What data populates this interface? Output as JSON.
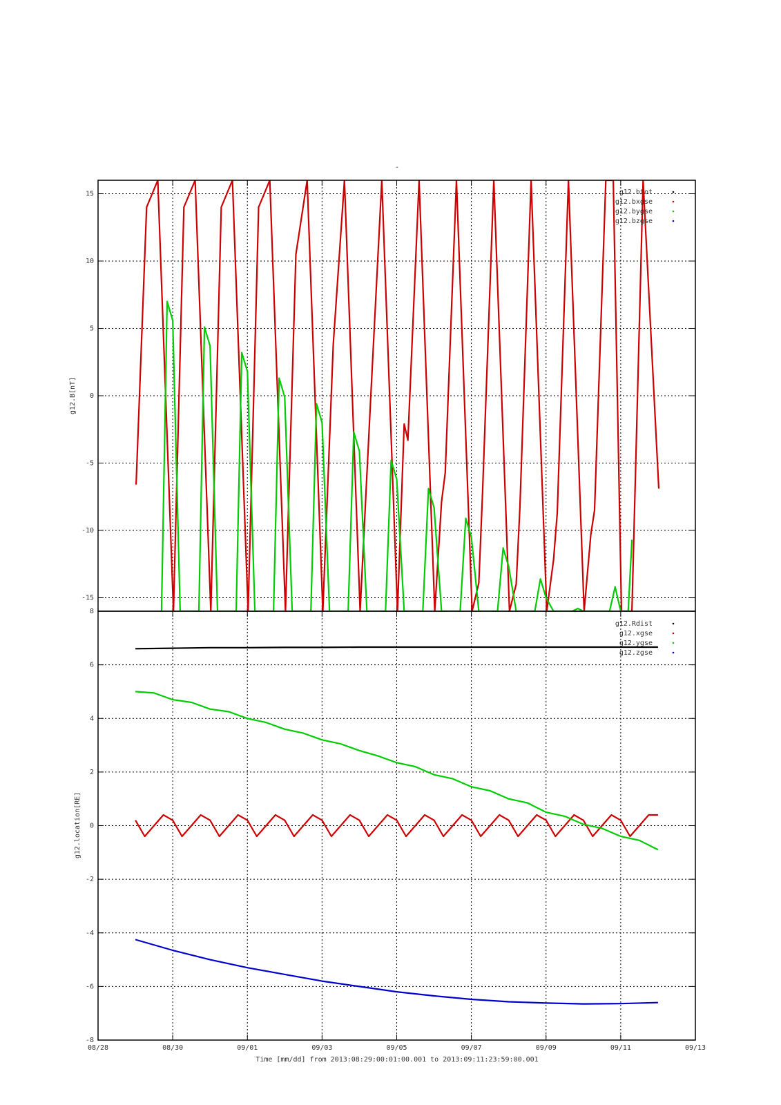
{
  "figure": {
    "title": "-",
    "footer": "Time [mm/dd]  from 2013:08:29:00:01:00.001  to  2013:09:11:23:59:00.001"
  },
  "x_axis": {
    "range_days": [
      0,
      16
    ],
    "ticks": [
      {
        "day": 0,
        "label": "08/28"
      },
      {
        "day": 2,
        "label": "08/30"
      },
      {
        "day": 4,
        "label": "09/01"
      },
      {
        "day": 6,
        "label": "09/03"
      },
      {
        "day": 8,
        "label": "09/05"
      },
      {
        "day": 10,
        "label": "09/07"
      },
      {
        "day": 12,
        "label": "09/09"
      },
      {
        "day": 14,
        "label": "09/11"
      },
      {
        "day": 16,
        "label": "09/13"
      }
    ]
  },
  "chart_data": [
    {
      "type": "line",
      "ylabel": "g12.B[nT]",
      "ylim": [
        -16,
        16
      ],
      "yticks": [
        -15,
        -10,
        -5,
        0,
        5,
        10,
        15
      ],
      "legend_position": "top-right",
      "grid": true,
      "series": [
        {
          "name": "g12.btot",
          "color": "#000000",
          "x": [],
          "y": []
        },
        {
          "name": "g12.bxgse",
          "color": "#cc0000",
          "x": [
            1.02,
            1.3,
            1.6,
            2.02,
            2.3,
            2.6,
            3.02,
            3.3,
            3.6,
            4.02,
            4.3,
            4.6,
            5.02,
            5.3,
            5.6,
            6.02,
            6.3,
            6.6,
            7.02,
            7.3,
            7.6,
            8.02,
            8.2,
            8.3,
            8.6,
            9.02,
            9.2,
            9.3,
            9.6,
            10.02,
            10.2,
            10.3,
            10.6,
            11.02,
            11.2,
            11.3,
            11.6,
            12.02,
            12.2,
            12.3,
            12.6,
            13.02,
            13.2,
            13.3,
            13.6,
            13.8,
            14.02,
            14.2,
            14.3,
            14.6,
            15.02
          ],
          "y": [
            -6.6,
            14,
            16,
            -16,
            14,
            16,
            -16,
            14,
            16,
            -16,
            14,
            16,
            -16,
            10.5,
            16,
            -16,
            3.8,
            16,
            -16,
            -0.3,
            16,
            -16,
            -2.1,
            -3.3,
            16,
            -16,
            -7.9,
            -5.7,
            16,
            -16,
            -13.9,
            -7.2,
            16,
            -16,
            -14,
            -8.3,
            16,
            -16,
            -12.2,
            -8.7,
            16,
            -16,
            -10.3,
            -8.5,
            16,
            16,
            -16,
            -16,
            -16,
            16,
            -6.9
          ]
        },
        {
          "name": "g12.bygse",
          "color": "#00cc00",
          "x": [
            1.7,
            1.85,
            2.0,
            2.2,
            2.7,
            2.85,
            3.0,
            3.2,
            3.7,
            3.85,
            4.0,
            4.2,
            4.7,
            4.85,
            5.0,
            5.2,
            5.7,
            5.85,
            6.0,
            6.2,
            6.7,
            6.85,
            7.0,
            7.2,
            7.7,
            7.85,
            8.0,
            8.2,
            8.7,
            8.85,
            9.0,
            9.2,
            9.7,
            9.85,
            10.0,
            10.2,
            10.7,
            10.85,
            11.0,
            11.2,
            11.7,
            11.85,
            12.0,
            12.2,
            12.7,
            12.85,
            13.0,
            13.2,
            13.7,
            13.85,
            14.0,
            14.2,
            14.3
          ],
          "y": [
            -16,
            7.0,
            5.6,
            -16,
            -16,
            5.1,
            3.7,
            -16,
            -16,
            3.2,
            1.8,
            -16,
            -16,
            1.3,
            -0.1,
            -16,
            -16,
            -0.6,
            -2.0,
            -16,
            -16,
            -2.7,
            -4.1,
            -16,
            -16,
            -4.8,
            -6.2,
            -16,
            -16,
            -6.9,
            -8.3,
            -16,
            -16,
            -9.1,
            -10.5,
            -16,
            -16,
            -11.3,
            -12.7,
            -16,
            -16,
            -13.6,
            -15.0,
            -16,
            -16,
            -15.8,
            -16,
            -16,
            -16,
            -14.2,
            -16,
            -16,
            -10.7
          ]
        },
        {
          "name": "g12.bzgse",
          "color": "#0000cc",
          "x": [],
          "y": []
        }
      ]
    },
    {
      "type": "line",
      "ylabel": "g12.location[RE]",
      "ylim": [
        -8,
        8
      ],
      "yticks": [
        -8,
        -6,
        -4,
        -2,
        0,
        2,
        4,
        6,
        8
      ],
      "legend_position": "top-right",
      "grid": true,
      "series": [
        {
          "name": "g12.Rdist",
          "color": "#000000",
          "x": [
            1.0,
            2.0,
            3.0,
            4.0,
            5.0,
            6.0,
            7.0,
            8.0,
            9.0,
            10.0,
            11.0,
            12.0,
            13.0,
            14.0,
            15.0
          ],
          "y": [
            6.6,
            6.62,
            6.64,
            6.64,
            6.65,
            6.65,
            6.66,
            6.66,
            6.66,
            6.66,
            6.66,
            6.66,
            6.66,
            6.66,
            6.66
          ]
        },
        {
          "name": "g12.xgse",
          "color": "#cc0000",
          "x": [
            1.0,
            1.25,
            1.5,
            1.75,
            2.0,
            2.25,
            2.5,
            2.75,
            3.0,
            3.25,
            3.5,
            3.75,
            4.0,
            4.25,
            4.5,
            4.75,
            5.0,
            5.25,
            5.5,
            5.75,
            6.0,
            6.25,
            6.5,
            6.75,
            7.0,
            7.25,
            7.5,
            7.75,
            8.0,
            8.25,
            8.5,
            8.75,
            9.0,
            9.25,
            9.5,
            9.75,
            10.0,
            10.25,
            10.5,
            10.75,
            11.0,
            11.25,
            11.5,
            11.75,
            12.0,
            12.25,
            12.5,
            12.75,
            13.0,
            13.25,
            13.5,
            13.75,
            14.0,
            14.25,
            14.5,
            14.75,
            15.0
          ],
          "y": [
            0.2,
            -0.4,
            0.0,
            0.4,
            0.2,
            -0.4,
            0.0,
            0.4,
            0.2,
            -0.4,
            0.0,
            0.4,
            0.2,
            -0.4,
            0.0,
            0.4,
            0.2,
            -0.4,
            0.0,
            0.4,
            0.2,
            -0.4,
            0.0,
            0.4,
            0.2,
            -0.4,
            0.0,
            0.4,
            0.2,
            -0.4,
            0.0,
            0.4,
            0.2,
            -0.4,
            0.0,
            0.4,
            0.2,
            -0.4,
            0.0,
            0.4,
            0.2,
            -0.4,
            0.0,
            0.4,
            0.2,
            -0.4,
            0.0,
            0.4,
            0.2,
            -0.4,
            0.0,
            0.4,
            0.2,
            -0.4,
            0.0,
            0.4,
            0.4
          ]
        },
        {
          "name": "g12.ygse",
          "color": "#00cc00",
          "x": [
            1.0,
            1.5,
            2.0,
            2.5,
            3.0,
            3.5,
            4.0,
            4.5,
            5.0,
            5.5,
            6.0,
            6.5,
            7.0,
            7.5,
            8.0,
            8.5,
            9.0,
            9.5,
            10.0,
            10.5,
            11.0,
            11.5,
            12.0,
            12.5,
            13.0,
            13.5,
            14.0,
            14.5,
            15.0
          ],
          "y": [
            5.0,
            4.95,
            4.7,
            4.6,
            4.35,
            4.25,
            4.0,
            3.85,
            3.6,
            3.45,
            3.2,
            3.05,
            2.8,
            2.6,
            2.35,
            2.2,
            1.9,
            1.75,
            1.45,
            1.3,
            1.0,
            0.85,
            0.5,
            0.35,
            0.05,
            -0.1,
            -0.4,
            -0.55,
            -0.9
          ]
        },
        {
          "name": "g12.zgse",
          "color": "#0000cc",
          "x": [
            1.0,
            2.0,
            3.0,
            4.0,
            5.0,
            6.0,
            7.0,
            8.0,
            9.0,
            10.0,
            11.0,
            12.0,
            13.0,
            14.0,
            15.0
          ],
          "y": [
            -4.25,
            -4.65,
            -5.0,
            -5.3,
            -5.55,
            -5.8,
            -6.0,
            -6.2,
            -6.35,
            -6.48,
            -6.57,
            -6.62,
            -6.65,
            -6.64,
            -6.6
          ]
        }
      ]
    }
  ]
}
